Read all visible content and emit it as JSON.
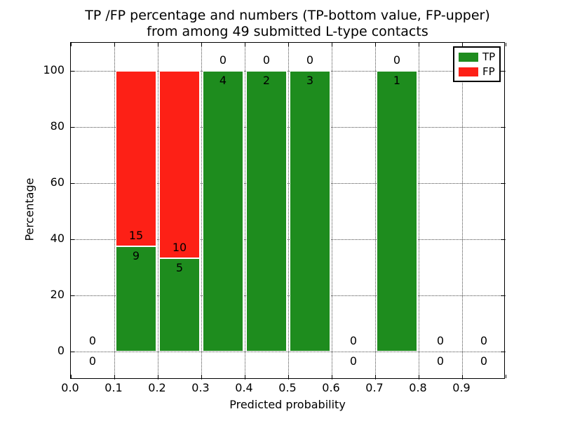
{
  "chart_data": {
    "type": "bar",
    "stacked": true,
    "title": "TP /FP percentage and numbers (TP-bottom value, FP-upper)",
    "subtitle": "from among 49 submitted L-type contacts",
    "xlabel": "Predicted probability",
    "ylabel": "Percentage",
    "xlim": [
      0.0,
      1.0
    ],
    "ylim": [
      -10,
      110
    ],
    "grid": "dotted",
    "xtick_labels": [
      "0.0",
      "0.1",
      "0.2",
      "0.3",
      "0.4",
      "0.5",
      "0.6",
      "0.7",
      "0.8",
      "0.9"
    ],
    "ytick_labels": [
      "0",
      "20",
      "40",
      "60",
      "80",
      "100"
    ],
    "yticks": [
      0,
      20,
      40,
      60,
      80,
      100
    ],
    "legend": {
      "position": "upper right",
      "entries": [
        {
          "label": "TP",
          "color": "#1e8c1e"
        },
        {
          "label": "FP",
          "color": "#fd2016"
        }
      ]
    },
    "colors": {
      "tp": "#1e8c1e",
      "fp": "#fd2016",
      "grid": "#4a4a4a",
      "axis": "#000000",
      "background": "#ffffff"
    },
    "bins": [
      {
        "x0": 0.0,
        "x1": 0.1,
        "tp": 0,
        "fp": 0,
        "tp_pct": 0,
        "fp_pct": 0
      },
      {
        "x0": 0.1,
        "x1": 0.2,
        "tp": 9,
        "fp": 15,
        "tp_pct": 37.5,
        "fp_pct": 62.5
      },
      {
        "x0": 0.2,
        "x1": 0.3,
        "tp": 5,
        "fp": 10,
        "tp_pct": 33.3,
        "fp_pct": 66.7
      },
      {
        "x0": 0.3,
        "x1": 0.4,
        "tp": 4,
        "fp": 0,
        "tp_pct": 100,
        "fp_pct": 0
      },
      {
        "x0": 0.4,
        "x1": 0.5,
        "tp": 2,
        "fp": 0,
        "tp_pct": 100,
        "fp_pct": 0
      },
      {
        "x0": 0.5,
        "x1": 0.6,
        "tp": 3,
        "fp": 0,
        "tp_pct": 100,
        "fp_pct": 0
      },
      {
        "x0": 0.6,
        "x1": 0.7,
        "tp": 0,
        "fp": 0,
        "tp_pct": 0,
        "fp_pct": 0
      },
      {
        "x0": 0.7,
        "x1": 0.8,
        "tp": 1,
        "fp": 0,
        "tp_pct": 100,
        "fp_pct": 0
      },
      {
        "x0": 0.8,
        "x1": 0.9,
        "tp": 0,
        "fp": 0,
        "tp_pct": 0,
        "fp_pct": 0
      },
      {
        "x0": 0.9,
        "x1": 1.0,
        "tp": 0,
        "fp": 0,
        "tp_pct": 0,
        "fp_pct": 0
      }
    ]
  }
}
